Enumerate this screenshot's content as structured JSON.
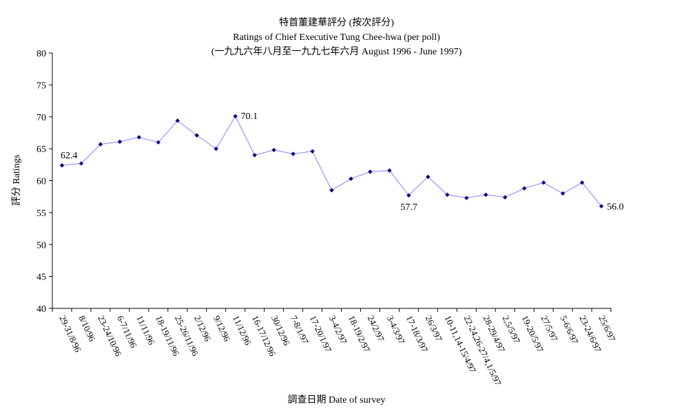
{
  "chart_data": {
    "type": "line",
    "title": "特首董建華評分 (按次評分)",
    "subtitle": "Ratings of Chief Executive Tung Chee-hwa (per poll)",
    "subtitle2": "(一九九六年八月至一九九七年六月 August 1996 - June 1997)",
    "xlabel": "調查日期 Date of survey",
    "ylabel": "評分 Ratings",
    "ylim": [
      40,
      80
    ],
    "yticks": [
      40,
      45,
      50,
      55,
      60,
      65,
      70,
      75,
      80
    ],
    "grid": false,
    "legend": "none",
    "colors": {
      "line": "#8080ff",
      "marker": "#000080",
      "axis": "#000000"
    },
    "categories": [
      "29-31/8/96",
      "8/10/96",
      "23-24/10/96",
      "6-7/11/96",
      "11/11/96",
      "18-19/11/96",
      "25-26/11/96",
      "2/12/96",
      "9/12/96",
      "11/12/96",
      "16-17/12/96",
      "30/12/96",
      "7-8/1/97",
      "17-20/1/97",
      "3-4/2/97",
      "18-19/2/97",
      "24/2/97",
      "3-4/3/97",
      "17-18/3/97",
      "26/3/97",
      "10-11,14-15/4/97",
      "22-24,26-27/4,1/5/97",
      "28-29/4/97",
      "2,5/5/97",
      "19-20/5/97",
      "27/5/97",
      "5-6/6/97",
      "23-24/6/97",
      "25/6/97"
    ],
    "values": [
      62.4,
      62.7,
      65.7,
      66.1,
      66.8,
      66.0,
      69.4,
      67.1,
      65.0,
      70.1,
      64.0,
      64.8,
      64.2,
      64.6,
      58.5,
      60.3,
      61.4,
      61.6,
      57.7,
      60.6,
      57.8,
      57.3,
      57.8,
      57.4,
      58.8,
      59.7,
      58.0,
      59.7,
      56.0
    ],
    "annotations": [
      {
        "index": 0,
        "text": "62.4"
      },
      {
        "index": 9,
        "text": "70.1"
      },
      {
        "index": 18,
        "text": "57.7"
      },
      {
        "index": 28,
        "text": "56.0"
      }
    ]
  }
}
